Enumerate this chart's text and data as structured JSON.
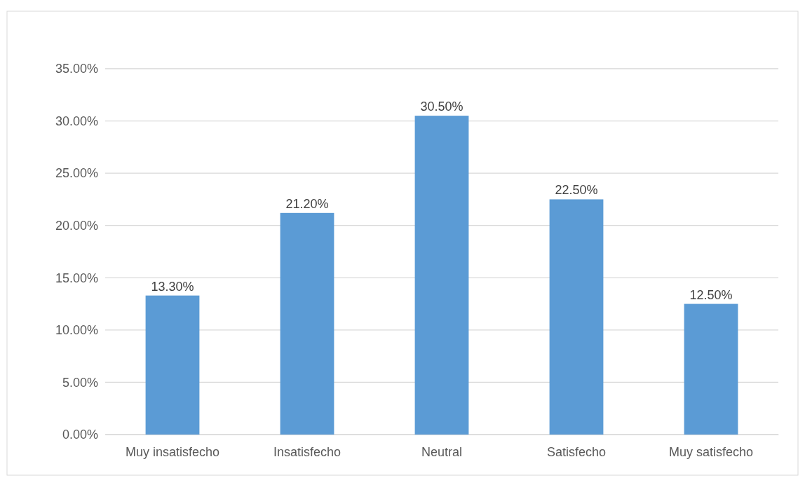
{
  "chart_data": {
    "type": "bar",
    "categories": [
      "Muy insatisfecho",
      "Insatisfecho",
      "Neutral",
      "Satisfecho",
      "Muy satisfecho"
    ],
    "values": [
      13.3,
      21.2,
      30.5,
      22.5,
      12.5
    ],
    "value_labels": [
      "13.30%",
      "21.20%",
      "30.50%",
      "22.50%",
      "12.50%"
    ],
    "color": "#5b9bd5",
    "ylim": [
      0,
      35
    ],
    "yticks": [
      {
        "value": 0,
        "label": "0.00%"
      },
      {
        "value": 5,
        "label": "5.00%"
      },
      {
        "value": 10,
        "label": "10.00%"
      },
      {
        "value": 15,
        "label": "15.00%"
      },
      {
        "value": 20,
        "label": "20.00%"
      },
      {
        "value": 25,
        "label": "25.00%"
      },
      {
        "value": 30,
        "label": "30.00%"
      },
      {
        "value": 35,
        "label": "35.00%"
      }
    ],
    "grid": true
  }
}
